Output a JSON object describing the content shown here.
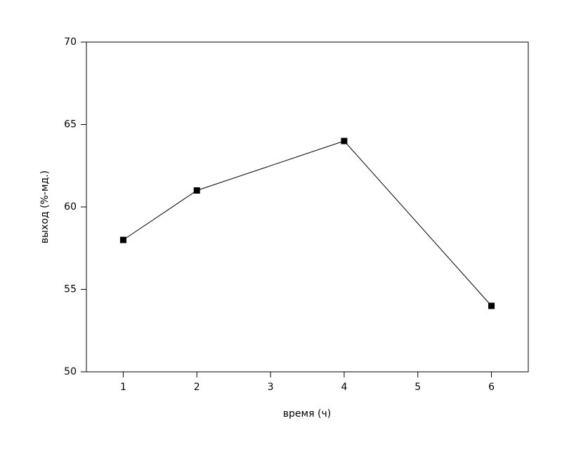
{
  "chart_data": {
    "type": "line",
    "xlabel": "время (ч)",
    "ylabel": "выход (%-мд.)",
    "x": [
      1,
      2,
      4,
      6
    ],
    "values": [
      58,
      61,
      64,
      54
    ],
    "color": "#000000",
    "xlim": [
      0.5,
      6.5
    ],
    "xticks": [
      1,
      2,
      3,
      4,
      5,
      6
    ],
    "ylim": [
      50,
      70
    ],
    "yticks": [
      50,
      55,
      60,
      65,
      70
    ],
    "grid": false
  }
}
